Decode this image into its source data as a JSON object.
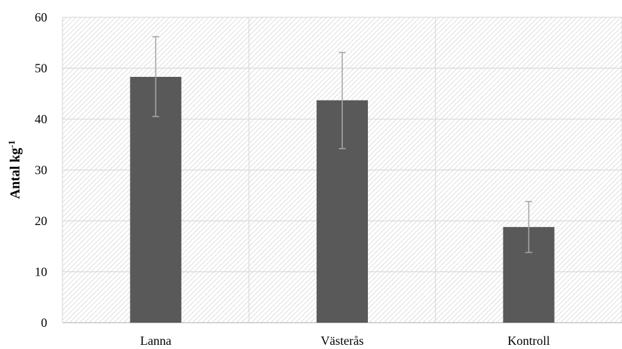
{
  "chart_data": {
    "type": "bar",
    "categories": [
      "Lanna",
      "Västerås",
      "Kontroll"
    ],
    "values": [
      48.3,
      43.7,
      18.8
    ],
    "error_low": [
      40.5,
      34.2,
      13.8
    ],
    "error_high": [
      56.2,
      53.1,
      23.8
    ],
    "ylabel": {
      "main": "Antal kg",
      "superscript": "-1"
    },
    "ylim": [
      0,
      60
    ],
    "yticks": [
      "0",
      "10",
      "20",
      "30",
      "40",
      "50",
      "60"
    ],
    "grid": true,
    "background": "hatched",
    "colors": {
      "bar": "#595959",
      "error": "#a6a6a6",
      "grid": "#d9d9d9",
      "hatch": "#d6d6d6"
    }
  }
}
